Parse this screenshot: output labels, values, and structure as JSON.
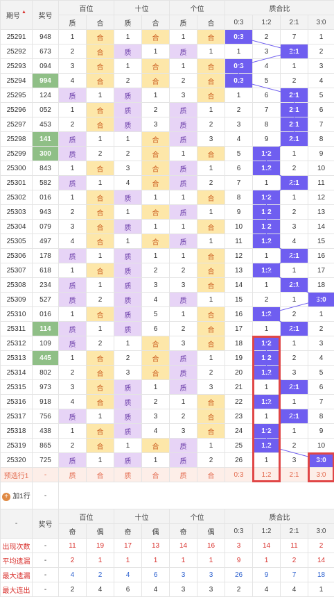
{
  "header": {
    "period": "期号",
    "prize": "奖号",
    "hundreds": "百位",
    "tens": "十位",
    "units": "个位",
    "ratio": "质合比",
    "zhi": "质",
    "he": "合",
    "ratio_cols": [
      "0:3",
      "1:2",
      "2:1",
      "3:0"
    ]
  },
  "accent_colors": {
    "hit": "#6f5ef0",
    "he": "#fde7a9",
    "zhi": "#e7d4f6",
    "prize_hi": "#8fbf86",
    "frame": "#e04646"
  },
  "rows": [
    {
      "p": "25291",
      "n": "948",
      "hl": false,
      "h": [
        "1",
        "合"
      ],
      "t": [
        "1",
        "合"
      ],
      "u": [
        "1",
        "合"
      ],
      "r": [
        "0:3",
        "2",
        "7",
        "1"
      ],
      "hit": 0
    },
    {
      "p": "25292",
      "n": "673",
      "hl": false,
      "h": [
        "2",
        "合"
      ],
      "t": [
        "质",
        "1"
      ],
      "u": [
        "质",
        "1"
      ],
      "r": [
        "1",
        "3",
        "2:1",
        "2"
      ],
      "hit": 2
    },
    {
      "p": "25293",
      "n": "094",
      "hl": false,
      "h": [
        "3",
        "合"
      ],
      "t": [
        "1",
        "合"
      ],
      "u": [
        "1",
        "合"
      ],
      "r": [
        "0:3",
        "4",
        "1",
        "3"
      ],
      "hit": 0
    },
    {
      "p": "25294",
      "n": "994",
      "hl": true,
      "h": [
        "4",
        "合"
      ],
      "t": [
        "2",
        "合"
      ],
      "u": [
        "2",
        "合"
      ],
      "r": [
        "0:3",
        "5",
        "2",
        "4"
      ],
      "hit": 0
    },
    {
      "p": "25295",
      "n": "124",
      "hl": false,
      "h": [
        "质",
        "1"
      ],
      "t": [
        "质",
        "1"
      ],
      "u": [
        "3",
        "合"
      ],
      "r": [
        "1",
        "6",
        "2:1",
        "5"
      ],
      "hit": 2
    },
    {
      "p": "25296",
      "n": "052",
      "hl": false,
      "h": [
        "1",
        "合"
      ],
      "t": [
        "质",
        "2"
      ],
      "u": [
        "质",
        "1"
      ],
      "r": [
        "2",
        "7",
        "2:1",
        "6"
      ],
      "hit": 2
    },
    {
      "p": "25297",
      "n": "453",
      "hl": false,
      "h": [
        "2",
        "合"
      ],
      "t": [
        "质",
        "3"
      ],
      "u": [
        "质",
        "2"
      ],
      "r": [
        "3",
        "8",
        "2:1",
        "7"
      ],
      "hit": 2
    },
    {
      "p": "25298",
      "n": "141",
      "hl": true,
      "h": [
        "质",
        "1"
      ],
      "t": [
        "1",
        "合"
      ],
      "u": [
        "质",
        "3"
      ],
      "r": [
        "4",
        "9",
        "2:1",
        "8"
      ],
      "hit": 2
    },
    {
      "p": "25299",
      "n": "300",
      "hl": true,
      "h": [
        "质",
        "2"
      ],
      "t": [
        "2",
        "合"
      ],
      "u": [
        "1",
        "合"
      ],
      "r": [
        "5",
        "1:2",
        "1",
        "9"
      ],
      "hit": 1
    },
    {
      "p": "25300",
      "n": "843",
      "hl": false,
      "h": [
        "1",
        "合"
      ],
      "t": [
        "3",
        "合"
      ],
      "u": [
        "质",
        "1"
      ],
      "r": [
        "6",
        "1:2",
        "2",
        "10"
      ],
      "hit": 1
    },
    {
      "p": "25301",
      "n": "582",
      "hl": false,
      "h": [
        "质",
        "1"
      ],
      "t": [
        "4",
        "合"
      ],
      "u": [
        "质",
        "2"
      ],
      "r": [
        "7",
        "1",
        "2:1",
        "11"
      ],
      "hit": 2
    },
    {
      "p": "25302",
      "n": "016",
      "hl": false,
      "h": [
        "1",
        "合"
      ],
      "t": [
        "质",
        "1"
      ],
      "u": [
        "1",
        "合"
      ],
      "r": [
        "8",
        "1:2",
        "1",
        "12"
      ],
      "hit": 1
    },
    {
      "p": "25303",
      "n": "943",
      "hl": false,
      "h": [
        "2",
        "合"
      ],
      "t": [
        "1",
        "合"
      ],
      "u": [
        "质",
        "1"
      ],
      "r": [
        "9",
        "1:2",
        "2",
        "13"
      ],
      "hit": 1
    },
    {
      "p": "25304",
      "n": "079",
      "hl": false,
      "h": [
        "3",
        "合"
      ],
      "t": [
        "质",
        "1"
      ],
      "u": [
        "1",
        "合"
      ],
      "r": [
        "10",
        "1:2",
        "3",
        "14"
      ],
      "hit": 1
    },
    {
      "p": "25305",
      "n": "497",
      "hl": false,
      "h": [
        "4",
        "合"
      ],
      "t": [
        "1",
        "合"
      ],
      "u": [
        "质",
        "1"
      ],
      "r": [
        "11",
        "1:2",
        "4",
        "15"
      ],
      "hit": 1
    },
    {
      "p": "25306",
      "n": "178",
      "hl": false,
      "h": [
        "质",
        "1"
      ],
      "t": [
        "质",
        "1"
      ],
      "u": [
        "1",
        "合"
      ],
      "r": [
        "12",
        "1",
        "2:1",
        "16"
      ],
      "hit": 2
    },
    {
      "p": "25307",
      "n": "618",
      "hl": false,
      "h": [
        "1",
        "合"
      ],
      "t": [
        "质",
        "2"
      ],
      "u": [
        "2",
        "合"
      ],
      "r": [
        "13",
        "1:2",
        "1",
        "17"
      ],
      "hit": 1
    },
    {
      "p": "25308",
      "n": "234",
      "hl": false,
      "h": [
        "质",
        "1"
      ],
      "t": [
        "质",
        "3"
      ],
      "u": [
        "3",
        "合"
      ],
      "r": [
        "14",
        "1",
        "2:1",
        "18"
      ],
      "hit": 2
    },
    {
      "p": "25309",
      "n": "527",
      "hl": false,
      "h": [
        "质",
        "2"
      ],
      "t": [
        "质",
        "4"
      ],
      "u": [
        "质",
        "1"
      ],
      "r": [
        "15",
        "2",
        "1",
        "3:0"
      ],
      "hit": 3
    },
    {
      "p": "25310",
      "n": "016",
      "hl": false,
      "h": [
        "1",
        "合"
      ],
      "t": [
        "质",
        "5"
      ],
      "u": [
        "1",
        "合"
      ],
      "r": [
        "16",
        "1:2",
        "2",
        "1"
      ],
      "hit": 1
    },
    {
      "p": "25311",
      "n": "114",
      "hl": true,
      "h": [
        "质",
        "1"
      ],
      "t": [
        "质",
        "6"
      ],
      "u": [
        "2",
        "合"
      ],
      "r": [
        "17",
        "1",
        "2:1",
        "2"
      ],
      "hit": 2
    },
    {
      "p": "25312",
      "n": "109",
      "hl": false,
      "h": [
        "质",
        "2"
      ],
      "t": [
        "1",
        "合"
      ],
      "u": [
        "3",
        "合"
      ],
      "r": [
        "18",
        "1:2",
        "1",
        "3"
      ],
      "hit": 1
    },
    {
      "p": "25313",
      "n": "445",
      "hl": true,
      "h": [
        "1",
        "合"
      ],
      "t": [
        "2",
        "合"
      ],
      "u": [
        "质",
        "1"
      ],
      "r": [
        "19",
        "1:2",
        "2",
        "4"
      ],
      "hit": 1
    },
    {
      "p": "25314",
      "n": "802",
      "h": [
        "2",
        "合"
      ],
      "hl": false,
      "t": [
        "3",
        "合"
      ],
      "u": [
        "质",
        "2"
      ],
      "r": [
        "20",
        "1:2",
        "3",
        "5"
      ],
      "hit": 1
    },
    {
      "p": "25315",
      "n": "973",
      "hl": false,
      "h": [
        "3",
        "合"
      ],
      "t": [
        "质",
        "1"
      ],
      "u": [
        "质",
        "3"
      ],
      "r": [
        "21",
        "1",
        "2:1",
        "6"
      ],
      "hit": 2
    },
    {
      "p": "25316",
      "n": "918",
      "hl": false,
      "h": [
        "4",
        "合"
      ],
      "t": [
        "质",
        "2"
      ],
      "u": [
        "1",
        "合"
      ],
      "r": [
        "22",
        "1:2",
        "1",
        "7"
      ],
      "hit": 1
    },
    {
      "p": "25317",
      "n": "756",
      "hl": false,
      "h": [
        "质",
        "1"
      ],
      "t": [
        "质",
        "3"
      ],
      "u": [
        "2",
        "合"
      ],
      "r": [
        "23",
        "1",
        "2:1",
        "8"
      ],
      "hit": 2
    },
    {
      "p": "25318",
      "n": "438",
      "hl": false,
      "h": [
        "1",
        "合"
      ],
      "t": [
        "质",
        "4"
      ],
      "u": [
        "3",
        "合"
      ],
      "r": [
        "24",
        "1:2",
        "1",
        "9"
      ],
      "hit": 1
    },
    {
      "p": "25319",
      "n": "865",
      "hl": false,
      "h": [
        "2",
        "合"
      ],
      "t": [
        "1",
        "合"
      ],
      "u": [
        "质",
        "1"
      ],
      "r": [
        "25",
        "1:2",
        "2",
        "10"
      ],
      "hit": 1
    },
    {
      "p": "25320",
      "n": "725",
      "hl": false,
      "h": [
        "质",
        "1"
      ],
      "t": [
        "质",
        "1"
      ],
      "u": [
        "质",
        "2"
      ],
      "r": [
        "26",
        "1",
        "3",
        "3:0"
      ],
      "hit": 3
    }
  ],
  "predict": {
    "label": "预选行1",
    "dash": "-",
    "cells": [
      "质",
      "合",
      "质",
      "合",
      "质",
      "合",
      "0:3",
      "1:2",
      "2:1",
      "3:0"
    ]
  },
  "add_row": {
    "label": "加1行",
    "dash": "-"
  },
  "footer": {
    "dash": "-",
    "prize": "奖号",
    "groups": [
      "百位",
      "十位",
      "个位",
      "质合比"
    ],
    "sub": [
      "奇",
      "偶",
      "奇",
      "偶",
      "奇",
      "偶",
      "0:3",
      "1:2",
      "2:1",
      "3:0"
    ]
  },
  "stats": [
    {
      "label": "出现次数",
      "dash": "-",
      "vals": [
        "11",
        "19",
        "17",
        "13",
        "14",
        "16",
        "3",
        "14",
        "11",
        "2"
      ],
      "cls": "v-red"
    },
    {
      "label": "平均遗漏",
      "dash": "-",
      "vals": [
        "2",
        "1",
        "1",
        "1",
        "1",
        "1",
        "9",
        "1",
        "2",
        "14"
      ],
      "cls": "v-red"
    },
    {
      "label": "最大遗漏",
      "dash": "-",
      "vals": [
        "4",
        "2",
        "4",
        "6",
        "3",
        "3",
        "26",
        "9",
        "7",
        "18"
      ],
      "cls": "v-blue"
    },
    {
      "label": "最大连出",
      "dash": "-",
      "vals": [
        "2",
        "4",
        "6",
        "4",
        "3",
        "3",
        "2",
        "4",
        "4",
        "1"
      ],
      "cls": "v-dark"
    }
  ]
}
